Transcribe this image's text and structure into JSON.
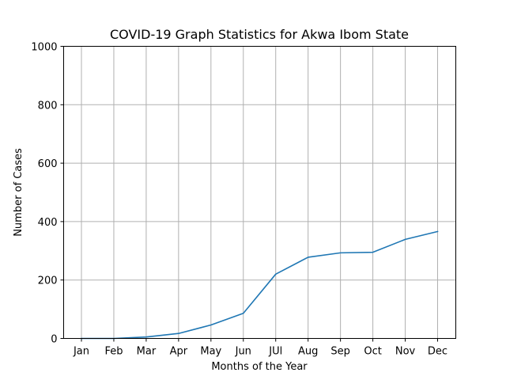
{
  "chart_data": {
    "type": "line",
    "title": "COVID-19 Graph Statistics for Akwa Ibom State",
    "xlabel": "Months of the Year",
    "ylabel": "Number of Cases",
    "categories": [
      "Jan",
      "Feb",
      "Mar",
      "Apr",
      "May",
      "Jun",
      "JUl",
      "Aug",
      "Sep",
      "Oct",
      "Nov",
      "Dec"
    ],
    "series": [
      {
        "values": [
          0,
          0,
          5,
          17,
          46,
          86,
          220,
          278,
          293,
          295,
          339,
          366
        ],
        "color": "#1f77b4"
      }
    ],
    "ylim": [
      0,
      1000
    ],
    "yticks": [
      "0",
      "200",
      "400",
      "600",
      "800",
      "1000"
    ],
    "grid": true,
    "legend": "none"
  }
}
